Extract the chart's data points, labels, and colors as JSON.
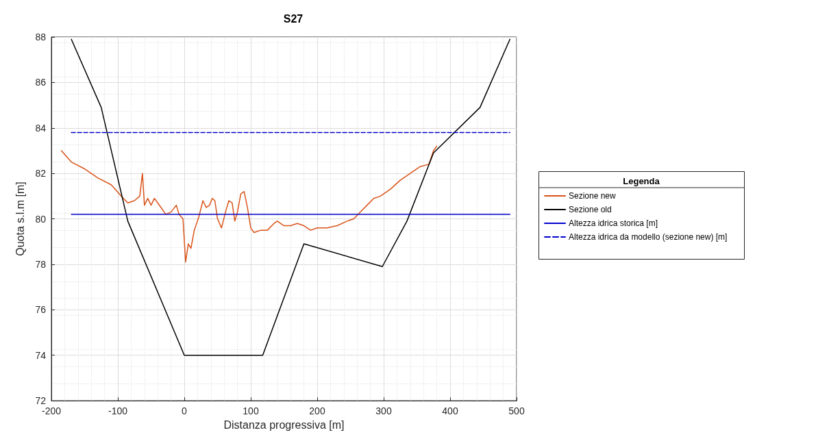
{
  "chart_data": {
    "type": "line",
    "title": "S27",
    "xlabel": "Distanza progressiva [m]",
    "ylabel": "Quota s.l.m [m]",
    "legend_title": "Legenda",
    "xlim": [
      -200,
      500
    ],
    "xticks": [
      -200,
      -100,
      0,
      100,
      200,
      300,
      400,
      500
    ],
    "ylim": [
      72,
      88
    ],
    "yticks": [
      72,
      74,
      76,
      78,
      80,
      82,
      84,
      86,
      88
    ],
    "grid": true,
    "legend": "right",
    "marker": "none",
    "series": [
      {
        "name": "Sezione new",
        "color": "#d95319",
        "line_style": "solid",
        "x": [
          -185,
          -170,
          -150,
          -130,
          -110,
          -95,
          -85,
          -75,
          -67,
          -63,
          -60,
          -55,
          -50,
          -45,
          -40,
          -35,
          -28,
          -20,
          -12,
          -8,
          -2,
          2,
          6,
          10,
          15,
          22,
          28,
          33,
          38,
          42,
          46,
          50,
          56,
          62,
          67,
          72,
          76,
          80,
          85,
          90,
          95,
          100,
          105,
          115,
          125,
          135,
          140,
          150,
          160,
          170,
          180,
          190,
          200,
          215,
          230,
          245,
          255,
          265,
          275,
          285,
          295,
          310,
          325,
          340,
          355,
          368,
          375,
          380
        ],
        "values": [
          83.0,
          82.5,
          82.2,
          81.8,
          81.5,
          81.0,
          80.7,
          80.8,
          81.0,
          82.0,
          80.6,
          80.9,
          80.6,
          80.9,
          80.7,
          80.5,
          80.2,
          80.3,
          80.6,
          80.2,
          80.0,
          78.1,
          78.9,
          78.7,
          79.5,
          80.1,
          80.8,
          80.5,
          80.6,
          80.9,
          80.8,
          80.0,
          79.6,
          80.3,
          80.8,
          80.7,
          79.9,
          80.3,
          81.1,
          81.2,
          80.5,
          79.6,
          79.4,
          79.5,
          79.5,
          79.8,
          79.9,
          79.7,
          79.7,
          79.8,
          79.7,
          79.5,
          79.6,
          79.6,
          79.7,
          79.9,
          80.0,
          80.3,
          80.6,
          80.9,
          81.0,
          81.3,
          81.7,
          82.0,
          82.3,
          82.4,
          83.0,
          83.2
        ]
      },
      {
        "name": "Sezione old",
        "color": "#000000",
        "line_style": "solid",
        "x": [
          -170,
          -125,
          -85,
          0,
          118,
          180,
          298,
          335,
          375,
          445,
          490
        ],
        "values": [
          87.9,
          84.9,
          79.9,
          74.0,
          74.0,
          78.9,
          77.9,
          79.9,
          82.9,
          84.9,
          87.9
        ]
      },
      {
        "name": "Altezza idrica storica [m]",
        "color": "#0000cc",
        "line_style": "solid",
        "x": [
          -170,
          490
        ],
        "values": [
          80.2,
          80.2
        ]
      },
      {
        "name": "Altezza idrica da modello (sezione new) [m]",
        "color": "#0000cc",
        "line_style": "dashed",
        "x": [
          -170,
          490
        ],
        "values": [
          83.8,
          83.8
        ]
      }
    ]
  }
}
